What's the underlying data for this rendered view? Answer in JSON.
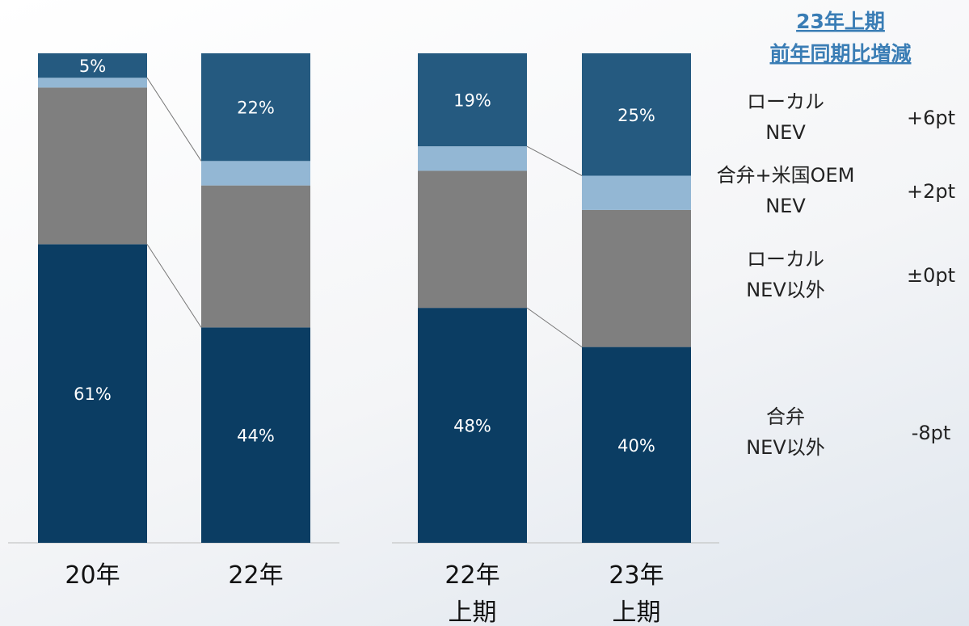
{
  "chart_data": [
    {
      "type": "stacked_bar",
      "categories": [
        "20年",
        "22年"
      ],
      "ylim": [
        0,
        100
      ],
      "series": [
        {
          "color": "#0b3d63",
          "values": [
            61,
            44
          ],
          "value_labels": [
            "61%",
            "44%"
          ]
        },
        {
          "color": "#7f7f7f",
          "values": [
            32,
            29
          ],
          "value_labels": [
            null,
            null
          ]
        },
        {
          "color": "#93b7d4",
          "values": [
            2,
            5
          ],
          "value_labels": [
            null,
            null
          ]
        },
        {
          "color": "#255a80",
          "values": [
            5,
            22
          ],
          "value_labels": [
            "5%",
            "22%"
          ]
        }
      ]
    },
    {
      "type": "stacked_bar",
      "categories": [
        "22年\n上期",
        "23年\n上期"
      ],
      "ylim": [
        0,
        100
      ],
      "title": "23年上期\n前年同期比増減",
      "series": [
        {
          "name": "合弁\nNEV以外",
          "color": "#0b3d63",
          "values": [
            48,
            40
          ],
          "value_labels": [
            "48%",
            "40%"
          ]
        },
        {
          "name": "ローカル\nNEV以外",
          "color": "#7f7f7f",
          "values": [
            28,
            28
          ],
          "value_labels": [
            null,
            null
          ]
        },
        {
          "name": "合弁+米国OEM\nNEV",
          "color": "#93b7d4",
          "values": [
            5,
            7
          ],
          "value_labels": [
            null,
            null
          ]
        },
        {
          "name": "ローカル\nNEV",
          "color": "#255a80",
          "values": [
            19,
            25
          ],
          "value_labels": [
            "19%",
            "25%"
          ]
        }
      ],
      "deltas": [
        "-8pt",
        "±0pt",
        "+2pt",
        "+6pt"
      ]
    }
  ]
}
